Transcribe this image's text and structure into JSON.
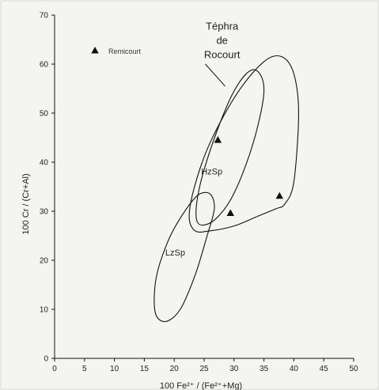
{
  "chart_data": {
    "type": "scatter",
    "xlabel": "100 Fe²⁺ / (Fe²⁺+Mg)",
    "ylabel": "100 Cr / (Cr+Al)",
    "xlim": [
      0,
      50
    ],
    "ylim": [
      0,
      70
    ],
    "xticks": [
      0,
      5,
      10,
      15,
      20,
      25,
      30,
      35,
      40,
      45,
      50
    ],
    "yticks": [
      0,
      10,
      20,
      30,
      40,
      50,
      60,
      70
    ],
    "grid": false,
    "legend_placement": "top-left",
    "series": [
      {
        "name": "Remicourt",
        "marker": "triangle",
        "color": "#111111",
        "points": [
          {
            "x": 27.3,
            "y": 44.5
          },
          {
            "x": 29.4,
            "y": 29.6
          },
          {
            "x": 37.6,
            "y": 33.1
          }
        ]
      }
    ],
    "regions": [
      {
        "label": "Téphra de Rocourt",
        "label_lines": [
          "Téphra",
          "de",
          "Rocourt"
        ],
        "outline": [
          [
            22.5,
            29.0
          ],
          [
            23.5,
            26.0
          ],
          [
            26.0,
            26.0
          ],
          [
            30.0,
            27.0
          ],
          [
            34.0,
            29.0
          ],
          [
            37.0,
            30.5
          ],
          [
            38.5,
            31.5
          ],
          [
            40.0,
            36.0
          ],
          [
            40.8,
            50.0
          ],
          [
            40.0,
            58.0
          ],
          [
            38.0,
            61.5
          ],
          [
            35.0,
            60.5
          ],
          [
            30.5,
            54.0
          ],
          [
            26.0,
            44.0
          ],
          [
            23.5,
            35.5
          ],
          [
            22.5,
            29.0
          ]
        ],
        "leader": [
          [
            28.5,
            55.5
          ],
          [
            25.2,
            60.0
          ]
        ]
      },
      {
        "label": "HzSp",
        "outline": [
          [
            23.8,
            28.0
          ],
          [
            25.0,
            27.2
          ],
          [
            27.0,
            28.5
          ],
          [
            29.5,
            32.5
          ],
          [
            32.0,
            39.5
          ],
          [
            34.0,
            47.5
          ],
          [
            35.0,
            54.5
          ],
          [
            34.2,
            58.2
          ],
          [
            32.5,
            58.5
          ],
          [
            30.0,
            54.5
          ],
          [
            27.5,
            47.5
          ],
          [
            25.0,
            38.5
          ],
          [
            23.8,
            32.0
          ],
          [
            23.8,
            28.0
          ]
        ]
      },
      {
        "label": "LzSp",
        "outline": [
          [
            18.5,
            7.5
          ],
          [
            21.0,
            10.0
          ],
          [
            23.5,
            17.0
          ],
          [
            25.5,
            25.0
          ],
          [
            26.7,
            30.5
          ],
          [
            26.0,
            33.5
          ],
          [
            24.0,
            33.3
          ],
          [
            21.5,
            29.5
          ],
          [
            19.0,
            24.0
          ],
          [
            17.0,
            16.5
          ],
          [
            16.8,
            9.5
          ],
          [
            18.5,
            7.5
          ]
        ]
      }
    ],
    "region_labels": [
      {
        "text": "HzSp",
        "x": 24.5,
        "y": 37.5
      },
      {
        "text": "LzSp",
        "x": 18.5,
        "y": 21.0
      }
    ],
    "title_label_position": {
      "x": 28.0,
      "y": 67.0
    }
  }
}
